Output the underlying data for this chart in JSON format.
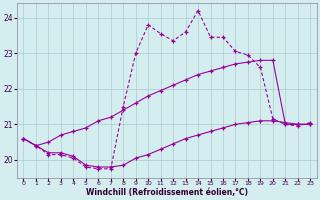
{
  "background_color": "#d4eef0",
  "grid_color": "#b0c8cc",
  "line_color": "#990099",
  "xlabel": "Windchill (Refroidissement éolien,°C)",
  "xlim": [
    -0.5,
    23.5
  ],
  "ylim": [
    19.5,
    24.4
  ],
  "yticks": [
    20,
    21,
    22,
    23,
    24
  ],
  "xticks": [
    0,
    1,
    2,
    3,
    4,
    5,
    6,
    7,
    8,
    9,
    10,
    11,
    12,
    13,
    14,
    15,
    16,
    17,
    18,
    19,
    20,
    21,
    22,
    23
  ],
  "line1_x": [
    0,
    1,
    2,
    3,
    4,
    5,
    6,
    7,
    8,
    9,
    10,
    11,
    12,
    13,
    14,
    15,
    16,
    17,
    18,
    19,
    20,
    21,
    22,
    23
  ],
  "line1_y": [
    20.6,
    20.4,
    20.2,
    20.2,
    20.1,
    19.85,
    19.8,
    19.8,
    19.85,
    20.05,
    20.15,
    20.3,
    20.45,
    20.6,
    20.7,
    20.8,
    20.9,
    21.0,
    21.05,
    21.1,
    21.1,
    21.05,
    21.0,
    21.0
  ],
  "line2_x": [
    0,
    1,
    2,
    3,
    4,
    5,
    6,
    7,
    8,
    9,
    10,
    11,
    12,
    13,
    14,
    15,
    16,
    17,
    18,
    19,
    20,
    21,
    22,
    23
  ],
  "line2_y": [
    20.6,
    20.4,
    20.15,
    20.15,
    20.05,
    19.8,
    19.75,
    19.75,
    21.5,
    23.0,
    23.8,
    23.55,
    23.35,
    23.6,
    24.2,
    23.45,
    23.45,
    23.05,
    22.95,
    22.6,
    21.15,
    21.0,
    20.95,
    21.05
  ],
  "line3_x": [
    0,
    1,
    2,
    3,
    4,
    5,
    6,
    7,
    8,
    9,
    10,
    11,
    12,
    13,
    14,
    15,
    16,
    17,
    18,
    19,
    20,
    21,
    22,
    23
  ],
  "line3_y": [
    20.6,
    20.4,
    20.5,
    20.7,
    20.8,
    20.9,
    21.1,
    21.2,
    21.4,
    21.6,
    21.8,
    21.95,
    22.1,
    22.25,
    22.4,
    22.5,
    22.6,
    22.7,
    22.75,
    22.8,
    22.8,
    21.0,
    21.0,
    21.0
  ]
}
